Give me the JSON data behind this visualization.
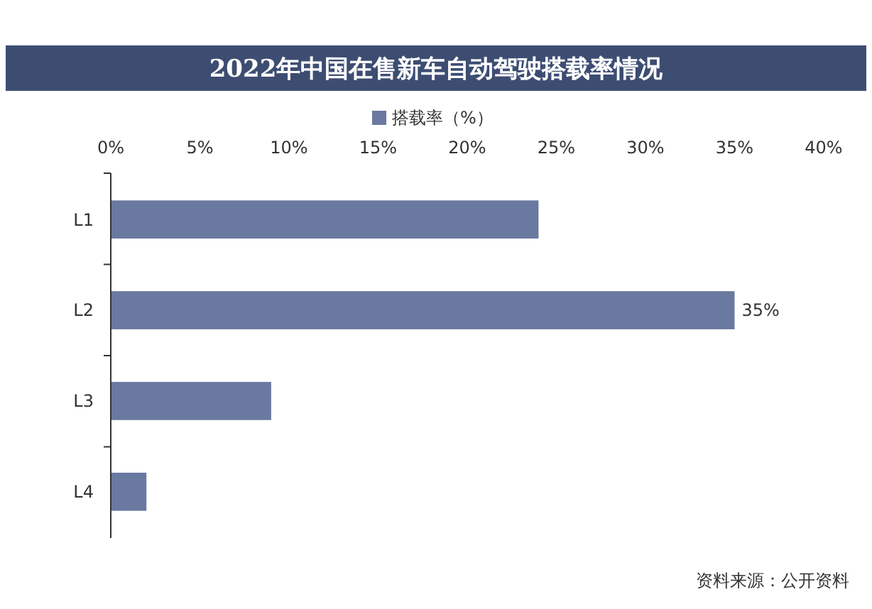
{
  "chart_data": {
    "type": "bar",
    "orientation": "horizontal",
    "title": "2022年中国在售新车自动驾驶搭载率情况",
    "categories": [
      "L1",
      "L2",
      "L3",
      "L4"
    ],
    "series": [
      {
        "name": "搭载率（%）",
        "color": "#6a79a0",
        "values": [
          24,
          35,
          9,
          2
        ],
        "value_labels": [
          null,
          "35%",
          null,
          null
        ]
      }
    ],
    "xlim": [
      0,
      40
    ],
    "xticks": [
      {
        "value": 0,
        "label": "0%"
      },
      {
        "value": 5,
        "label": "5%"
      },
      {
        "value": 10,
        "label": "10%"
      },
      {
        "value": 15,
        "label": "15%"
      },
      {
        "value": 20,
        "label": "20%"
      },
      {
        "value": 25,
        "label": "25%"
      },
      {
        "value": 30,
        "label": "30%"
      },
      {
        "value": 35,
        "label": "35%"
      },
      {
        "value": 40,
        "label": "40%"
      }
    ],
    "legend": "top",
    "annotations": [
      "资料来源：公开资料"
    ]
  }
}
